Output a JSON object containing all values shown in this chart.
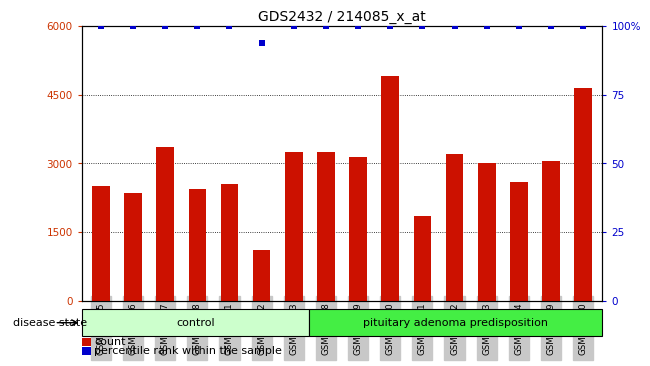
{
  "title": "GDS2432 / 214085_x_at",
  "samples": [
    "GSM100895",
    "GSM100896",
    "GSM100897",
    "GSM100898",
    "GSM100901",
    "GSM100902",
    "GSM100903",
    "GSM100888",
    "GSM100889",
    "GSM100890",
    "GSM100891",
    "GSM100892",
    "GSM100893",
    "GSM100894",
    "GSM100899",
    "GSM100900"
  ],
  "counts": [
    2500,
    2350,
    3350,
    2450,
    2550,
    1100,
    3250,
    3250,
    3150,
    4900,
    1850,
    3200,
    3000,
    2600,
    3050,
    4650
  ],
  "percentile": [
    100,
    100,
    100,
    100,
    100,
    94,
    100,
    100,
    100,
    100,
    100,
    100,
    100,
    100,
    100,
    100
  ],
  "control_count": 7,
  "disease_count": 9,
  "control_label": "control",
  "disease_label": "pituitary adenoma predisposition",
  "disease_state_label": "disease state",
  "bar_color": "#cc1100",
  "percentile_color": "#0000cc",
  "ylim_left": [
    0,
    6000
  ],
  "ylim_right": [
    0,
    100
  ],
  "yticks_left": [
    0,
    1500,
    3000,
    4500,
    6000
  ],
  "yticks_right": [
    0,
    25,
    50,
    75,
    100
  ],
  "ytick_labels_right": [
    "0",
    "25",
    "50",
    "75",
    "100%"
  ],
  "grid_color": "black",
  "bg_color": "#ffffff",
  "control_bg": "#ccffcc",
  "disease_bg": "#44ee44",
  "tick_label_color_left": "#cc3300",
  "tick_label_color_right": "#0000cc",
  "xticklabel_bg": "#c8c8c8"
}
